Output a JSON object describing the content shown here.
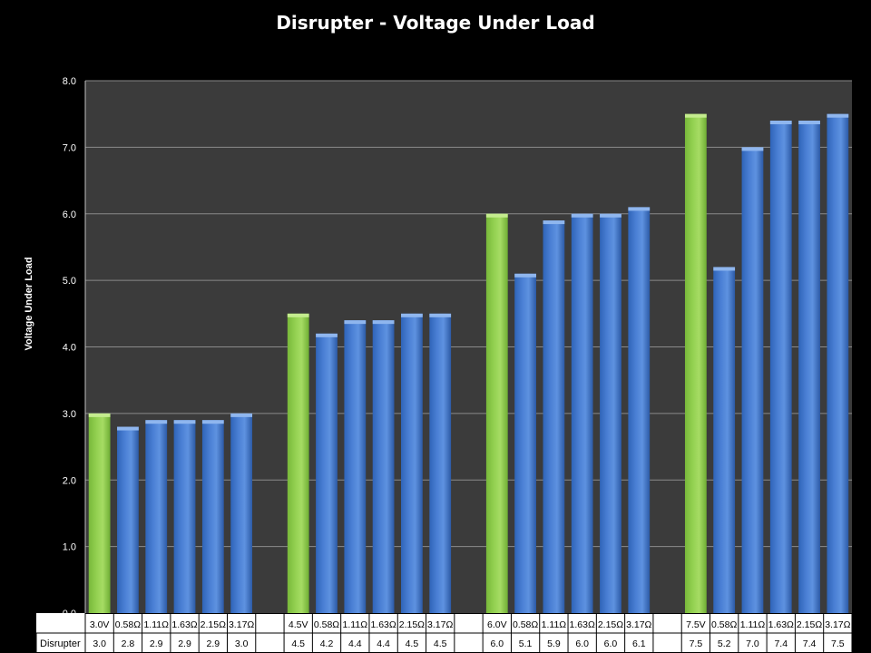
{
  "chart_data": {
    "type": "bar",
    "title": "Disrupter - Voltage Under Load",
    "ylabel": "Voltage Under Load",
    "ylim": [
      0,
      8
    ],
    "yticks": [
      "0.0",
      "1.0",
      "2.0",
      "3.0",
      "4.0",
      "5.0",
      "6.0",
      "7.0",
      "8.0"
    ],
    "grid": true,
    "legend": "none",
    "series": [
      {
        "name": "Disrupter",
        "categories": [
          "3.0V",
          "0.58Ω",
          "1.11Ω",
          "1.63Ω",
          "2.15Ω",
          "3.17Ω",
          "",
          "4.5V",
          "0.58Ω",
          "1.11Ω",
          "1.63Ω",
          "2.15Ω",
          "3.17Ω",
          "",
          "6.0V",
          "0.58Ω",
          "1.11Ω",
          "1.63Ω",
          "2.15Ω",
          "3.17Ω",
          "",
          "7.5V",
          "0.58Ω",
          "1.11Ω",
          "1.63Ω",
          "2.15Ω",
          "3.17Ω"
        ],
        "values": [
          3.0,
          2.8,
          2.9,
          2.9,
          2.9,
          3.0,
          null,
          4.5,
          4.2,
          4.4,
          4.4,
          4.5,
          4.5,
          null,
          6.0,
          5.1,
          5.9,
          6.0,
          6.0,
          6.1,
          null,
          7.5,
          5.2,
          7.0,
          7.4,
          7.4,
          7.5
        ],
        "value_labels": [
          "3.0",
          "2.8",
          "2.9",
          "2.9",
          "2.9",
          "3.0",
          "",
          "4.5",
          "4.2",
          "4.4",
          "4.4",
          "4.5",
          "4.5",
          "",
          "6.0",
          "5.1",
          "5.9",
          "6.0",
          "6.0",
          "6.1",
          "",
          "7.5",
          "5.2",
          "7.0",
          "7.4",
          "7.4",
          "7.5"
        ],
        "kinds": [
          "ref",
          "load",
          "load",
          "load",
          "load",
          "load",
          "gap",
          "ref",
          "load",
          "load",
          "load",
          "load",
          "load",
          "gap",
          "ref",
          "load",
          "load",
          "load",
          "load",
          "load",
          "gap",
          "ref",
          "load",
          "load",
          "load",
          "load",
          "load"
        ]
      }
    ],
    "colors": {
      "background": "#000000",
      "plot_area": "#3b3b3b",
      "gridline": "#8a8a8a",
      "reference_bar": "#92d050",
      "load_bar": "#4a7fd4",
      "table_bg": "#ffffff",
      "table_border": "#000000"
    }
  }
}
